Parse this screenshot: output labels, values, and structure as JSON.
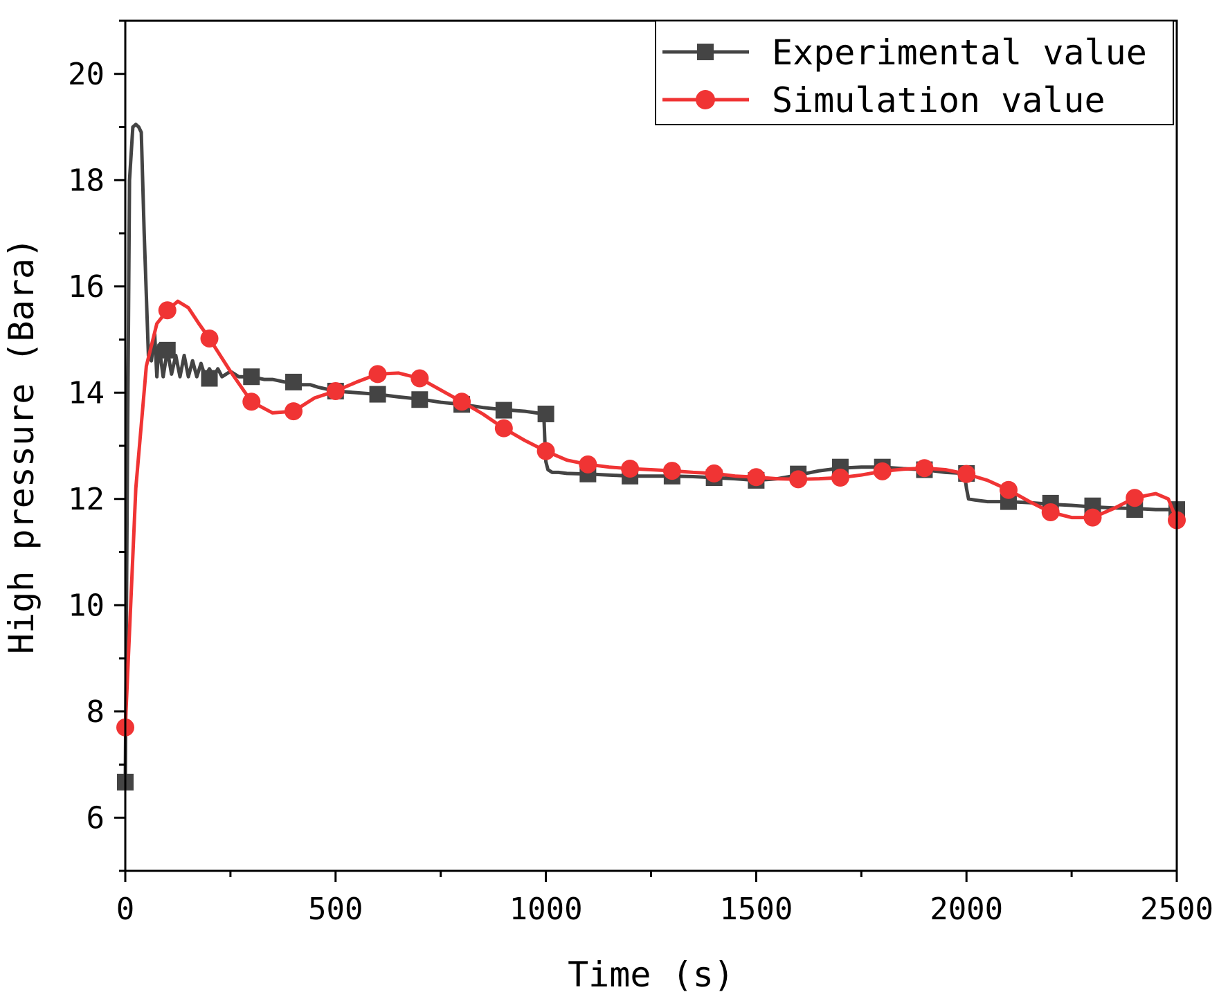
{
  "chart_data": {
    "type": "line",
    "title": "",
    "xlabel": "Time (s)",
    "ylabel": "High pressure (Bara)",
    "xlim": [
      0,
      2500
    ],
    "ylim": [
      5,
      21
    ],
    "xticks": [
      0,
      500,
      1000,
      1500,
      2000,
      2500
    ],
    "xtick_labels": [
      "0",
      "500",
      "1000",
      "1500",
      "2000",
      "2500"
    ],
    "yticks": [
      6,
      8,
      10,
      12,
      14,
      16,
      18,
      20
    ],
    "ytick_labels": [
      "6",
      "8",
      "10",
      "12",
      "14",
      "16",
      "18",
      "20"
    ],
    "legend_position": "top-right",
    "grid": false,
    "series": [
      {
        "name": "Experimental value",
        "color": "#444444",
        "marker": "square",
        "x": [
          0,
          5,
          10,
          18,
          25,
          32,
          38,
          45,
          55,
          62,
          70,
          75,
          80,
          90,
          100,
          110,
          120,
          130,
          140,
          150,
          160,
          170,
          180,
          190,
          200,
          210,
          220,
          230,
          250,
          270,
          300,
          330,
          350,
          380,
          400,
          420,
          440,
          460,
          500,
          550,
          600,
          650,
          700,
          750,
          800,
          850,
          900,
          950,
          995,
          998,
          1000,
          1005,
          1015,
          1030,
          1050,
          1100,
          1150,
          1200,
          1250,
          1300,
          1350,
          1400,
          1450,
          1500,
          1550,
          1600,
          1650,
          1700,
          1750,
          1800,
          1850,
          1900,
          1950,
          1995,
          2000,
          2005,
          2020,
          2050,
          2100,
          2150,
          2200,
          2250,
          2300,
          2350,
          2400,
          2450,
          2500
        ],
        "y": [
          6.67,
          12.5,
          18.0,
          19.0,
          19.05,
          19.0,
          18.9,
          17.0,
          14.7,
          14.6,
          15.1,
          14.3,
          14.9,
          14.3,
          14.8,
          14.35,
          14.7,
          14.3,
          14.7,
          14.3,
          14.6,
          14.3,
          14.55,
          14.3,
          14.45,
          14.3,
          14.45,
          14.3,
          14.4,
          14.3,
          14.3,
          14.25,
          14.25,
          14.2,
          14.2,
          14.15,
          14.15,
          14.1,
          14.03,
          14.0,
          13.97,
          13.92,
          13.88,
          13.82,
          13.78,
          13.72,
          13.68,
          13.65,
          13.6,
          13.0,
          12.7,
          12.55,
          12.5,
          12.5,
          12.48,
          12.47,
          12.45,
          12.43,
          12.43,
          12.43,
          12.42,
          12.4,
          12.38,
          12.35,
          12.38,
          12.45,
          12.53,
          12.58,
          12.6,
          12.6,
          12.57,
          12.55,
          12.5,
          12.48,
          12.2,
          12.0,
          11.98,
          11.95,
          11.95,
          11.93,
          11.9,
          11.88,
          11.85,
          11.83,
          11.82,
          11.8,
          11.8
        ],
        "marker_x": [
          0,
          100,
          200,
          300,
          400,
          500,
          600,
          700,
          800,
          900,
          1000,
          1100,
          1200,
          1300,
          1400,
          1500,
          1600,
          1700,
          1800,
          1900,
          2000,
          2100,
          2200,
          2300,
          2400,
          2500
        ],
        "marker_y": [
          6.67,
          14.8,
          14.27,
          14.3,
          14.2,
          14.03,
          13.97,
          13.87,
          13.78,
          13.67,
          13.6,
          12.47,
          12.43,
          12.43,
          12.4,
          12.35,
          12.47,
          12.6,
          12.6,
          12.55,
          12.48,
          11.95,
          11.92,
          11.87,
          11.8,
          11.8
        ]
      },
      {
        "name": "Simulation value",
        "color": "#f03434",
        "marker": "circle",
        "x": [
          0,
          25,
          50,
          75,
          100,
          125,
          150,
          175,
          200,
          250,
          300,
          350,
          400,
          450,
          500,
          550,
          600,
          650,
          700,
          750,
          800,
          850,
          900,
          950,
          1000,
          1050,
          1100,
          1150,
          1200,
          1250,
          1300,
          1350,
          1400,
          1450,
          1500,
          1550,
          1600,
          1650,
          1700,
          1750,
          1800,
          1850,
          1900,
          1950,
          2000,
          2050,
          2100,
          2150,
          2200,
          2250,
          2300,
          2350,
          2400,
          2450,
          2480,
          2500
        ],
        "y": [
          7.7,
          12.2,
          14.5,
          15.3,
          15.55,
          15.72,
          15.6,
          15.3,
          15.02,
          14.4,
          13.83,
          13.62,
          13.65,
          13.9,
          14.03,
          14.2,
          14.35,
          14.37,
          14.27,
          14.05,
          13.83,
          13.6,
          13.33,
          13.1,
          12.9,
          12.73,
          12.65,
          12.6,
          12.57,
          12.55,
          12.53,
          12.5,
          12.48,
          12.43,
          12.41,
          12.38,
          12.37,
          12.38,
          12.4,
          12.45,
          12.52,
          12.56,
          12.58,
          12.55,
          12.47,
          12.35,
          12.17,
          11.95,
          11.75,
          11.65,
          11.65,
          11.82,
          12.02,
          12.1,
          12.0,
          11.6
        ],
        "marker_x": [
          0,
          100,
          200,
          300,
          400,
          500,
          600,
          700,
          800,
          900,
          1000,
          1100,
          1200,
          1300,
          1400,
          1500,
          1600,
          1700,
          1800,
          1900,
          2000,
          2100,
          2200,
          2300,
          2400,
          2500
        ],
        "marker_y": [
          7.7,
          15.55,
          15.02,
          13.83,
          13.65,
          14.03,
          14.35,
          14.27,
          13.83,
          13.33,
          12.9,
          12.65,
          12.57,
          12.53,
          12.48,
          12.41,
          12.37,
          12.4,
          12.52,
          12.58,
          12.47,
          12.17,
          11.75,
          11.65,
          12.02,
          11.6
        ]
      }
    ]
  }
}
